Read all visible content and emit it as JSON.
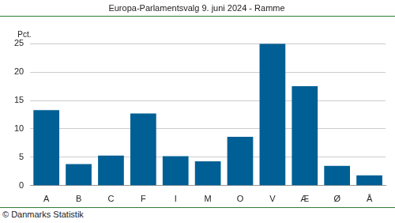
{
  "chart_data": {
    "type": "bar",
    "title": "Europa-Parlamentsvalg 9. juni 2024 - Ramme",
    "ylabel": "Pct.",
    "source": "© Danmarks Statistik",
    "categories": [
      "A",
      "B",
      "C",
      "F",
      "I",
      "M",
      "O",
      "V",
      "Æ",
      "Ø",
      "Å"
    ],
    "values": [
      13.3,
      3.8,
      5.3,
      12.7,
      5.2,
      4.3,
      8.6,
      25.0,
      17.5,
      3.5,
      1.8
    ],
    "color": "#005f94",
    "ylim": [
      0,
      25
    ],
    "yticks": [
      0,
      5,
      10,
      15,
      20,
      25
    ],
    "grid": true
  }
}
